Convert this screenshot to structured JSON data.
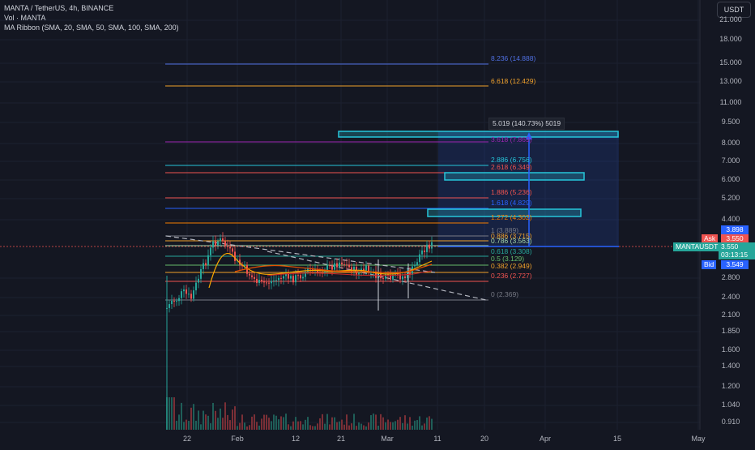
{
  "header": {
    "title": "MANTA / TetherUS, 4h, BINANCE",
    "volume_label": "Vol · MANTA",
    "ma_ribbon_label": "MA Ribbon (SMA, 20, SMA, 50, SMA, 100, SMA, 200)",
    "currency_button": "USDT"
  },
  "price_axis": {
    "labels": [
      "21.000",
      "18.000",
      "15.000",
      "13.000",
      "11.000",
      "9.500",
      "8.000",
      "7.000",
      "6.000",
      "5.200",
      "4.400",
      "2.800",
      "2.400",
      "2.100",
      "1.850",
      "1.600",
      "1.400",
      "1.200",
      "1.040",
      "0.910"
    ]
  },
  "time_axis": {
    "labels": [
      "22",
      "Feb",
      "12",
      "21",
      "Mar",
      "11",
      "20",
      "Apr",
      "15",
      "May"
    ]
  },
  "price_tags": {
    "last_high": "3.898",
    "ask_label": "Ask",
    "ask_value": "3.550",
    "symbol": "MANTAUSDT",
    "current_price": "3.550",
    "countdown": "03:13:15",
    "bid_label": "Bid",
    "bid_value": "3.549"
  },
  "fib_levels": [
    {
      "label": "8.236 (14.888)",
      "color": "#4f6fe0"
    },
    {
      "label": "6.618 (12.429)",
      "color": "#f0a12b"
    },
    {
      "label": "3.618 (7.869)",
      "color": "#9c27b0"
    },
    {
      "label": "2.886 (6.756)",
      "color": "#26c6da"
    },
    {
      "label": "2.618 (6.349)",
      "color": "#ef5350"
    },
    {
      "label": "1.886 (5.236)",
      "color": "#ef5350"
    },
    {
      "label": "1.618 (4.829)",
      "color": "#2962ff"
    },
    {
      "label": "1.272 (4.302)",
      "color": "#f57c00"
    },
    {
      "label": "1 (3.889)",
      "color": "#787b86"
    },
    {
      "label": "0.886 (3.715)",
      "color": "#f0a12b"
    },
    {
      "label": "0.786 (3.563)",
      "color": "#a5d6a7"
    },
    {
      "label": "0.618 (3.308)",
      "color": "#26a69a"
    },
    {
      "label": "0.5 (3.129)",
      "color": "#66bb6a"
    },
    {
      "label": "0.382 (2.949)",
      "color": "#f0a12b"
    },
    {
      "label": "0.236 (2.727)",
      "color": "#ef5350"
    },
    {
      "label": "0 (2.369)",
      "color": "#787b86"
    }
  ],
  "measure_label": "5.019 (140.73%) 5019",
  "colors": {
    "background": "#141722",
    "up": "#26a69a",
    "down": "#ef5350",
    "accent": "#2962ff",
    "ask": "#ef5350",
    "bid": "#2962ff",
    "current": "#26a69a"
  }
}
